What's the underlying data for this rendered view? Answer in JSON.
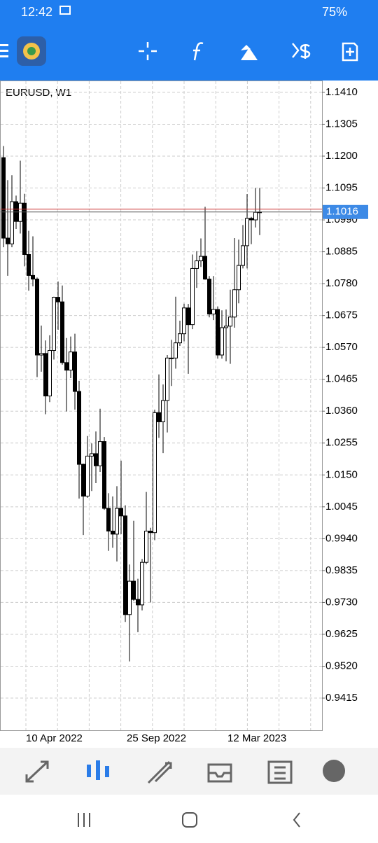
{
  "status_bar": {
    "time": "12:42",
    "battery": "75%"
  },
  "chart_data": {
    "type": "candlestick",
    "title": "EURUSD, W1",
    "categories": [
      null,
      null,
      null,
      null,
      null,
      null,
      "10 Apr 2022",
      null,
      null,
      null,
      null,
      null,
      null,
      null,
      null,
      null,
      null,
      null,
      null,
      null,
      null,
      null,
      null,
      null,
      null,
      null,
      null,
      null,
      null,
      null,
      "25 Sep 2022",
      null,
      null,
      null,
      null,
      null,
      null,
      null,
      null,
      null,
      null,
      null,
      null,
      null,
      null,
      null,
      null,
      null,
      null,
      null,
      null,
      null,
      null,
      null,
      "12 Mar 2023",
      null,
      null,
      null,
      null,
      null,
      null,
      null
    ],
    "open": [
      1.1195,
      1.093,
      1.0911,
      1.105,
      1.0985,
      1.1045,
      1.0876,
      1.0807,
      1.0795,
      1.0545,
      1.055,
      1.041,
      1.056,
      1.0735,
      1.072,
      1.052,
      1.0495,
      1.0555,
      1.0425,
      1.0185,
      1.008,
      1.0212,
      1.022,
      1.018,
      1.026,
      1.004,
      0.9965,
      0.9955,
      1.004,
      1.0015,
      0.969,
      0.98,
      0.974,
      0.9722,
      0.9862,
      0.9965,
      0.996,
      1.0355,
      1.0325,
      1.0395,
      1.0535,
      1.0535,
      1.0585,
      1.0615,
      1.07,
      1.0645,
      1.083,
      1.0855,
      1.087,
      1.0795,
      1.068,
      1.0695,
      1.0545,
      1.0635,
      1.064,
      1.067,
      1.076,
      1.084,
      1.0905,
      1.0995,
      1.099,
      1.1015
    ],
    "high": [
      1.1233,
      1.1121,
      1.1137,
      1.107,
      1.1185,
      1.1076,
      1.0954,
      1.0936,
      1.08,
      1.0642,
      1.0593,
      1.061,
      1.0737,
      1.0787,
      1.0774,
      1.0601,
      1.0606,
      1.0615,
      1.046,
      1.0187,
      1.0278,
      1.0254,
      1.0293,
      1.0368,
      1.0275,
      1.009,
      1.0079,
      1.0113,
      1.0197,
      1.005,
      0.9855,
      0.9999,
      0.9808,
      0.9873,
      1.0094,
      0.9976,
      1.0365,
      1.0481,
      1.0448,
      1.0545,
      1.0595,
      1.0737,
      1.0658,
      1.0714,
      1.0713,
      1.0876,
      1.0887,
      1.0929,
      1.1033,
      1.0805,
      1.0805,
      1.0705,
      1.0692,
      1.0695,
      1.076,
      1.093,
      1.0925,
      1.0973,
      1.1075,
      1.1,
      1.1095,
      1.1095
    ],
    "low": [
      1.09,
      1.0806,
      1.09,
      1.096,
      1.0945,
      1.0837,
      1.0757,
      1.0771,
      1.0472,
      1.049,
      1.035,
      1.039,
      1.053,
      1.0628,
      1.0513,
      1.0359,
      1.0469,
      1.0365,
      1.0072,
      0.9952,
      1.0075,
      1.0097,
      1.0123,
      1.016,
      1.0035,
      0.99,
      0.991,
      0.9865,
      0.9955,
      0.9666,
      0.9536,
      0.9735,
      0.9632,
      0.9704,
      0.9856,
      0.973,
      0.9935,
      1.0272,
      1.0222,
      1.029,
      1.0443,
      1.05,
      1.0575,
      1.059,
      1.0483,
      1.063,
      1.0766,
      1.0835,
      1.0793,
      1.0669,
      1.066,
      1.0533,
      1.0533,
      1.0524,
      1.0516,
      1.0635,
      1.0715,
      1.083,
      1.083,
      1.091,
      1.0965,
      1.094
    ],
    "close": [
      1.093,
      1.0911,
      1.105,
      1.0985,
      1.1045,
      1.0876,
      1.0807,
      1.0795,
      1.0545,
      1.055,
      1.041,
      1.056,
      1.0735,
      1.072,
      1.052,
      1.0495,
      1.0555,
      1.0425,
      1.0185,
      1.008,
      1.0212,
      1.022,
      1.018,
      1.026,
      1.004,
      0.9965,
      0.9955,
      1.004,
      1.0015,
      0.969,
      0.98,
      0.974,
      0.9722,
      0.9862,
      0.9965,
      0.996,
      1.0355,
      1.0325,
      1.0395,
      1.0535,
      1.0535,
      1.0585,
      1.0615,
      1.07,
      1.0645,
      1.083,
      1.0855,
      1.087,
      1.0795,
      1.068,
      1.0695,
      1.0545,
      1.0635,
      1.064,
      1.067,
      1.076,
      1.084,
      1.0905,
      1.0995,
      1.099,
      1.1015,
      1.1016
    ],
    "ylim": [
      0.9309,
      1.1449
    ],
    "yticks": [
      {
        "value": 1.141,
        "label": "1.1410"
      },
      1.1305,
      {
        "value": 1.12,
        "label": "1.1200"
      },
      1.1095,
      {
        "value": 1.099,
        "label": "1.0990"
      },
      1.0885,
      {
        "value": 1.078,
        "label": "1.0780"
      },
      1.0675,
      {
        "value": 1.057,
        "label": "1.0570"
      },
      1.0465,
      {
        "value": 1.036,
        "label": "1.0360"
      },
      1.0255,
      {
        "value": 1.015,
        "label": "1.0150"
      },
      1.0045,
      {
        "value": 0.994,
        "label": "0.9940"
      },
      0.9835,
      {
        "value": 0.973,
        "label": "0.9730"
      },
      0.9625,
      {
        "value": 0.952,
        "label": "0.9520"
      },
      0.9415
    ],
    "grid": true,
    "up_color": "#ffffff",
    "down_color": "#000000",
    "current_price": 1.1016,
    "price_tag_color": "#3d8ae6"
  }
}
